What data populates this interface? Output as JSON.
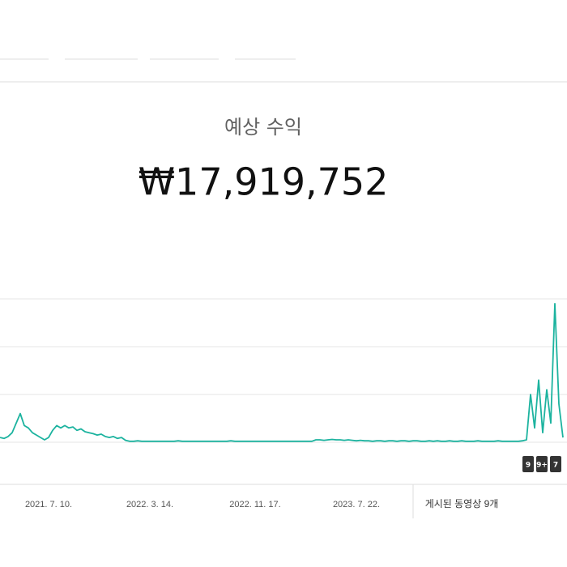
{
  "header": {
    "title": "예상 수익",
    "value": "₩17,919,752"
  },
  "chart_data": {
    "type": "line",
    "color": "#1cb39f",
    "values": [
      0.1,
      0.08,
      0.12,
      0.2,
      0.4,
      0.6,
      0.35,
      0.3,
      0.2,
      0.15,
      0.1,
      0.05,
      0.1,
      0.25,
      0.35,
      0.3,
      0.35,
      0.3,
      0.32,
      0.25,
      0.28,
      0.22,
      0.2,
      0.18,
      0.15,
      0.17,
      0.12,
      0.1,
      0.12,
      0.08,
      0.1,
      0.04,
      0.02,
      0.02,
      0.03,
      0.02,
      0.02,
      0.02,
      0.02,
      0.02,
      0.02,
      0.02,
      0.02,
      0.02,
      0.03,
      0.02,
      0.02,
      0.02,
      0.02,
      0.02,
      0.02,
      0.02,
      0.02,
      0.02,
      0.02,
      0.02,
      0.02,
      0.03,
      0.02,
      0.02,
      0.02,
      0.02,
      0.02,
      0.02,
      0.02,
      0.02,
      0.02,
      0.02,
      0.02,
      0.02,
      0.02,
      0.02,
      0.02,
      0.02,
      0.02,
      0.02,
      0.02,
      0.02,
      0.05,
      0.05,
      0.04,
      0.05,
      0.06,
      0.05,
      0.05,
      0.04,
      0.05,
      0.04,
      0.03,
      0.04,
      0.03,
      0.03,
      0.02,
      0.03,
      0.03,
      0.02,
      0.03,
      0.03,
      0.02,
      0.03,
      0.03,
      0.02,
      0.03,
      0.03,
      0.02,
      0.02,
      0.03,
      0.02,
      0.03,
      0.02,
      0.02,
      0.03,
      0.02,
      0.02,
      0.03,
      0.02,
      0.02,
      0.02,
      0.03,
      0.02,
      0.02,
      0.02,
      0.02,
      0.03,
      0.02,
      0.02,
      0.02,
      0.02,
      0.02,
      0.03,
      0.05,
      1.0,
      0.3,
      1.3,
      0.2,
      1.1,
      0.4,
      2.9,
      0.8,
      0.1
    ],
    "xlim": [
      0,
      139
    ],
    "xticks": [
      {
        "value": 12,
        "label": "2021. 7. 10."
      },
      {
        "value": 37,
        "label": "2022. 3. 14."
      },
      {
        "value": 63,
        "label": "2022. 11. 17."
      },
      {
        "value": 88,
        "label": "2023. 7. 22."
      }
    ],
    "ylim": [
      0,
      3
    ],
    "yticks": [
      0,
      1,
      2,
      3
    ],
    "grid": true,
    "video_count_label": "게시된 동영상 9개",
    "video_markers": [
      "9",
      "9+",
      "7"
    ]
  }
}
